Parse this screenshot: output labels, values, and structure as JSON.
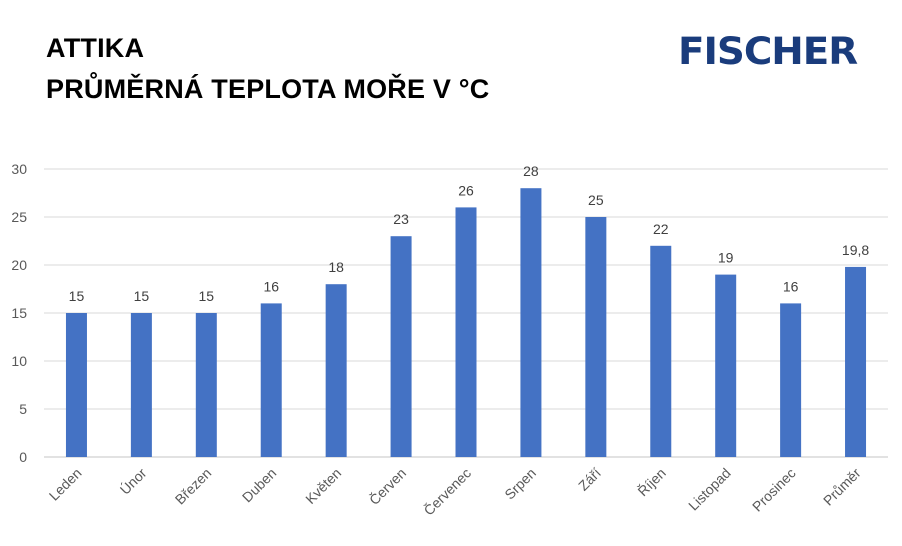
{
  "header": {
    "title_line1": "ATTIKA",
    "title_line2": "PRŮMĚRNÁ TEPLOTA MOŘE V °C",
    "logo": "FISCHER"
  },
  "colors": {
    "bar": "#4472c4",
    "grid": "#d9d9d9",
    "logo": "#1a3c7c"
  },
  "chart_data": {
    "type": "bar",
    "title": "ATTIKA PRŮMĚRNÁ TEPLOTA MOŘE V °C",
    "categories": [
      "Leden",
      "Únor",
      "Březen",
      "Duben",
      "Květen",
      "Červen",
      "Červenec",
      "Srpen",
      "Září",
      "Říjen",
      "Listopad",
      "Prosinec",
      "Průměr"
    ],
    "values": [
      15,
      15,
      15,
      16,
      18,
      23,
      26,
      28,
      25,
      22,
      19,
      16,
      19.8
    ],
    "data_labels": [
      "15",
      "15",
      "15",
      "16",
      "18",
      "23",
      "26",
      "28",
      "25",
      "22",
      "19",
      "16",
      "19,8"
    ],
    "ylim": [
      0,
      30
    ],
    "yticks": [
      0,
      5,
      10,
      15,
      20,
      25,
      30
    ],
    "grid": true,
    "legend": "none"
  }
}
